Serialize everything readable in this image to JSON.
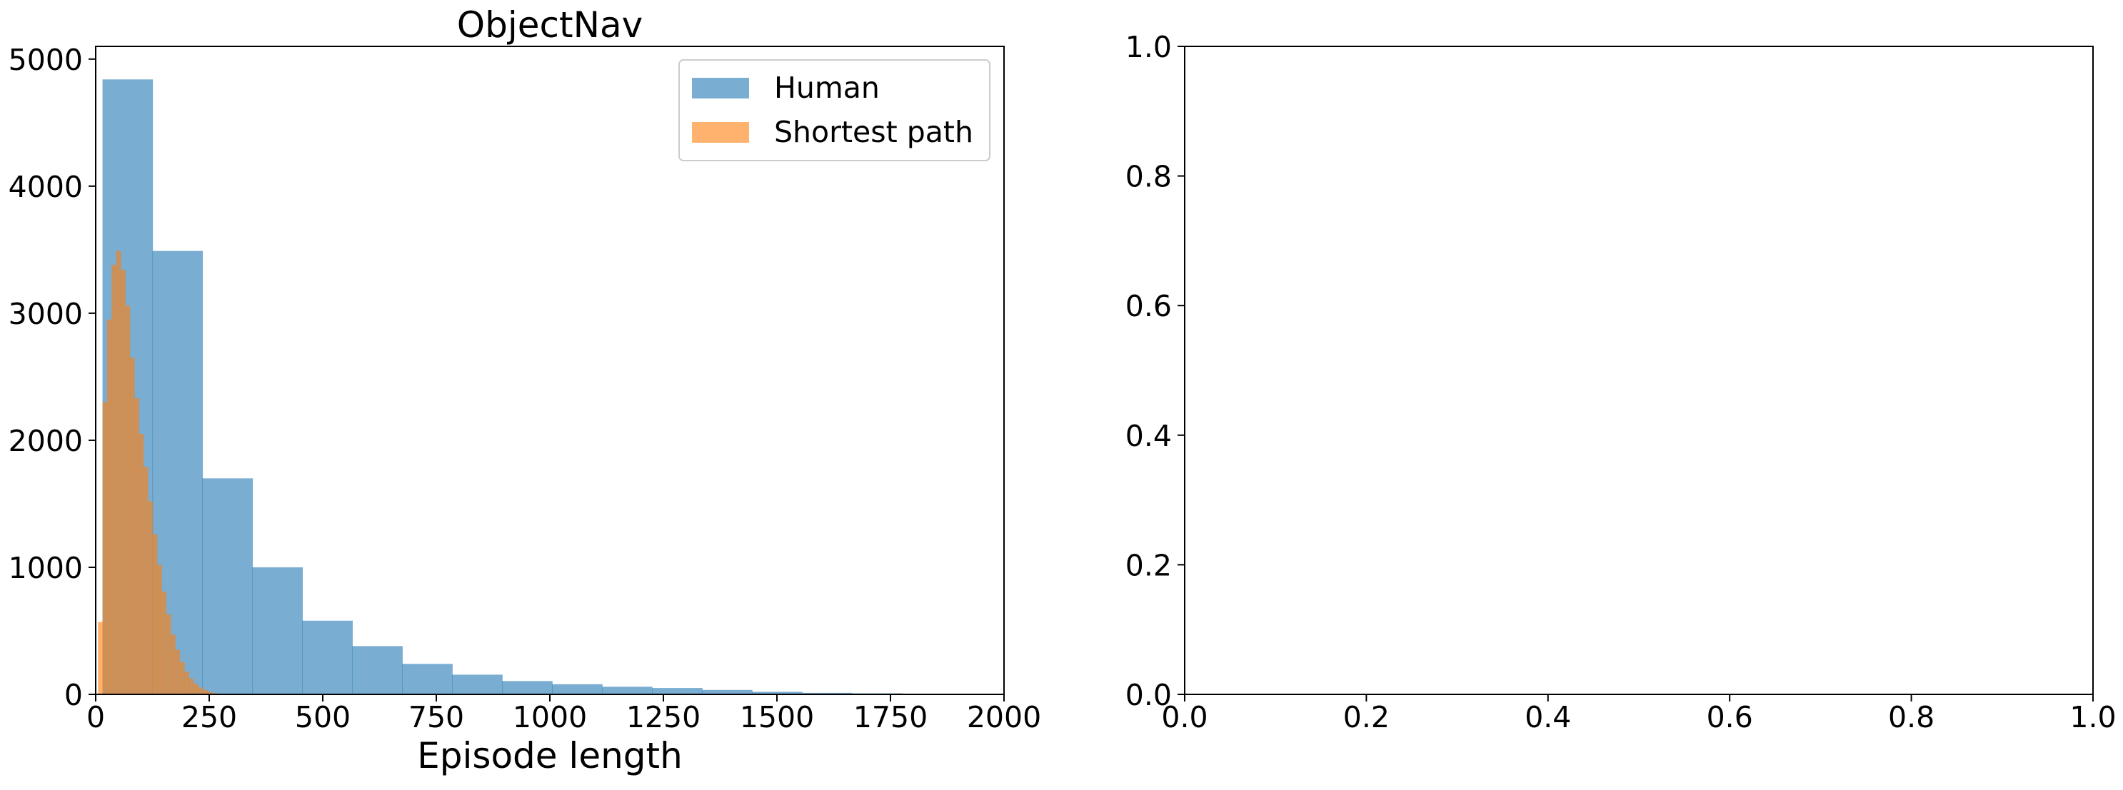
{
  "chart_data": [
    {
      "type": "bar",
      "subtype": "histogram",
      "title": "ObjectNav",
      "xlabel": "Episode length",
      "ylabel": "",
      "xlim": [
        0,
        2000
      ],
      "ylim": [
        0,
        5100
      ],
      "x_ticks": [
        "0",
        "250",
        "500",
        "750",
        "1000",
        "1250",
        "1500",
        "1750",
        "2000"
      ],
      "y_ticks": [
        "0",
        "1000",
        "2000",
        "3000",
        "4000",
        "5000"
      ],
      "grid": false,
      "legend_position": "top-right",
      "series": [
        {
          "name": "Human",
          "color": "#1f77b4",
          "alpha": 0.6,
          "bins": [
            {
              "x0": 15,
              "x1": 125,
              "value": 4840
            },
            {
              "x0": 125,
              "x1": 235,
              "value": 3490
            },
            {
              "x0": 235,
              "x1": 345,
              "value": 1700
            },
            {
              "x0": 345,
              "x1": 455,
              "value": 1000
            },
            {
              "x0": 455,
              "x1": 565,
              "value": 580
            },
            {
              "x0": 565,
              "x1": 675,
              "value": 380
            },
            {
              "x0": 675,
              "x1": 785,
              "value": 240
            },
            {
              "x0": 785,
              "x1": 895,
              "value": 155
            },
            {
              "x0": 895,
              "x1": 1005,
              "value": 105
            },
            {
              "x0": 1005,
              "x1": 1115,
              "value": 80
            },
            {
              "x0": 1115,
              "x1": 1225,
              "value": 60
            },
            {
              "x0": 1225,
              "x1": 1335,
              "value": 50
            },
            {
              "x0": 1335,
              "x1": 1445,
              "value": 35
            },
            {
              "x0": 1445,
              "x1": 1555,
              "value": 20
            },
            {
              "x0": 1555,
              "x1": 1665,
              "value": 12
            },
            {
              "x0": 1665,
              "x1": 1775,
              "value": 8
            },
            {
              "x0": 1775,
              "x1": 1885,
              "value": 5
            }
          ]
        },
        {
          "name": "Shortest path",
          "color": "#ff7f0e",
          "alpha": 0.6,
          "bins": [
            {
              "x0": 5,
              "x1": 15,
              "value": 570
            },
            {
              "x0": 15,
              "x1": 25,
              "value": 2300
            },
            {
              "x0": 25,
              "x1": 35,
              "value": 2950
            },
            {
              "x0": 35,
              "x1": 45,
              "value": 3380
            },
            {
              "x0": 45,
              "x1": 55,
              "value": 3490
            },
            {
              "x0": 55,
              "x1": 65,
              "value": 3340
            },
            {
              "x0": 65,
              "x1": 75,
              "value": 3060
            },
            {
              "x0": 75,
              "x1": 85,
              "value": 2650
            },
            {
              "x0": 85,
              "x1": 95,
              "value": 2330
            },
            {
              "x0": 95,
              "x1": 105,
              "value": 2050
            },
            {
              "x0": 105,
              "x1": 115,
              "value": 1790
            },
            {
              "x0": 115,
              "x1": 125,
              "value": 1520
            },
            {
              "x0": 125,
              "x1": 135,
              "value": 1260
            },
            {
              "x0": 135,
              "x1": 145,
              "value": 1020
            },
            {
              "x0": 145,
              "x1": 155,
              "value": 810
            },
            {
              "x0": 155,
              "x1": 165,
              "value": 630
            },
            {
              "x0": 165,
              "x1": 175,
              "value": 470
            },
            {
              "x0": 175,
              "x1": 185,
              "value": 350
            },
            {
              "x0": 185,
              "x1": 195,
              "value": 255
            },
            {
              "x0": 195,
              "x1": 205,
              "value": 180
            },
            {
              "x0": 205,
              "x1": 215,
              "value": 125
            },
            {
              "x0": 215,
              "x1": 225,
              "value": 85
            },
            {
              "x0": 225,
              "x1": 235,
              "value": 55
            },
            {
              "x0": 235,
              "x1": 245,
              "value": 35
            },
            {
              "x0": 245,
              "x1": 255,
              "value": 20
            },
            {
              "x0": 255,
              "x1": 265,
              "value": 12
            },
            {
              "x0": 265,
              "x1": 275,
              "value": 6
            }
          ]
        }
      ]
    },
    {
      "type": "empty",
      "title": "",
      "xlabel": "",
      "ylabel": "",
      "xlim": [
        0,
        1
      ],
      "ylim": [
        0,
        1
      ],
      "x_ticks": [
        "0.0",
        "0.2",
        "0.4",
        "0.6",
        "0.8",
        "1.0"
      ],
      "y_ticks": [
        "0.0",
        "0.2",
        "0.4",
        "0.6",
        "0.8",
        "1.0"
      ],
      "grid": false
    }
  ]
}
